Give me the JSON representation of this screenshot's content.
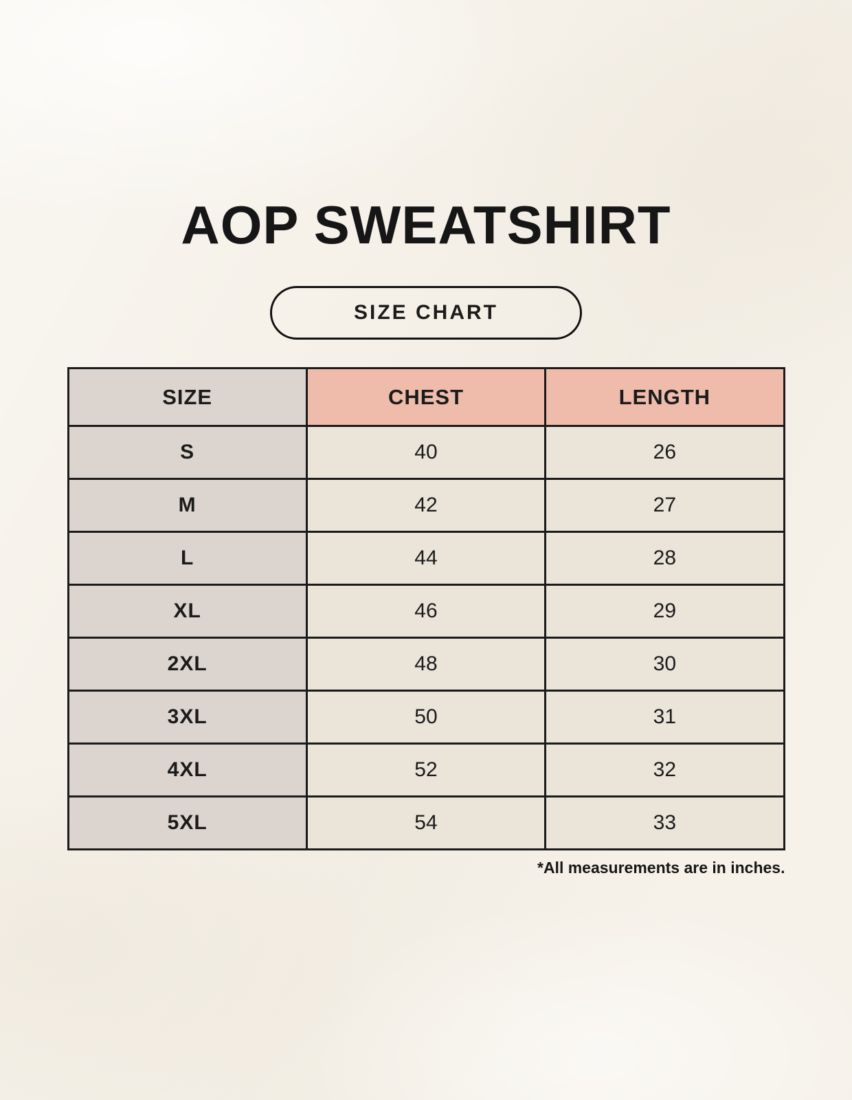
{
  "header": {
    "title": "AOP SWEATSHIRT",
    "badge_label": "SIZE CHART"
  },
  "chart_data": {
    "type": "table",
    "title": "AOP SWEATSHIRT",
    "subtitle": "SIZE CHART",
    "columns": [
      "SIZE",
      "CHEST",
      "LENGTH"
    ],
    "rows": [
      {
        "size": "S",
        "chest": 40,
        "length": 26
      },
      {
        "size": "M",
        "chest": 42,
        "length": 27
      },
      {
        "size": "L",
        "chest": 44,
        "length": 28
      },
      {
        "size": "XL",
        "chest": 46,
        "length": 29
      },
      {
        "size": "2XL",
        "chest": 48,
        "length": 30
      },
      {
        "size": "3XL",
        "chest": 50,
        "length": 31
      },
      {
        "size": "4XL",
        "chest": 52,
        "length": 32
      },
      {
        "size": "5XL",
        "chest": 54,
        "length": 33
      }
    ],
    "footnote": "*All measurements are in inches.",
    "units": "inches",
    "layout_hints": {
      "grid": "on",
      "header_row": true,
      "columns_equal_width": true
    }
  },
  "colors": {
    "page_background": "#f6f2ea",
    "size_column_background": "#dcd5cf",
    "measure_header_background": "#efbcac",
    "data_cell_background": "#eae4d9",
    "border": "#1b1b1b",
    "text": "#161616"
  }
}
